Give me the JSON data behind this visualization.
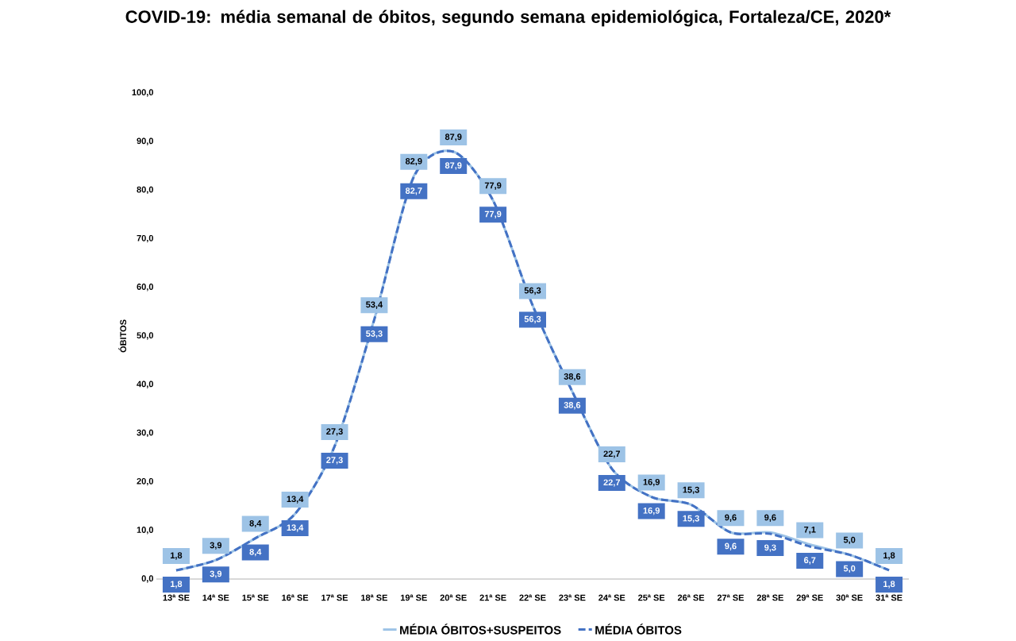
{
  "chart_data": {
    "type": "line",
    "title": "COVID-19: média semanal de óbitos, segundo semana epidemiológica, Fortaleza/CE, 2020*",
    "ylabel": "ÓBITOS",
    "categories": [
      "13ª SE",
      "14ª SE",
      "15ª SE",
      "16ª SE",
      "17ª SE",
      "18ª SE",
      "19ª SE",
      "20ª SE",
      "21ª SE",
      "22ª SE",
      "23ª SE",
      "24ª SE",
      "25ª SE",
      "26ª SE",
      "27ª SE",
      "28ª SE",
      "29ª SE",
      "30ª SE",
      "31ª SE"
    ],
    "series": [
      {
        "name": "MÉDIA ÓBITOS+SUSPEITOS",
        "color": "#9dc3e6",
        "line_style": "solid",
        "values": [
          1.8,
          3.9,
          8.4,
          13.4,
          27.3,
          53.4,
          82.9,
          87.9,
          77.9,
          56.3,
          38.6,
          22.7,
          16.9,
          15.3,
          9.6,
          9.6,
          7.1,
          5.0,
          1.8
        ],
        "value_labels": [
          "1,8",
          "3,9",
          "8,4",
          "13,4",
          "27,3",
          "53,4",
          "82,9",
          "87,9",
          "77,9",
          "56,3",
          "38,6",
          "22,7",
          "16,9",
          "15,3",
          "9,6",
          "9,6",
          "7,1",
          "5,0",
          "1,8"
        ]
      },
      {
        "name": "MÉDIA ÓBITOS",
        "color": "#4472c4",
        "line_style": "dashed",
        "values": [
          1.8,
          3.9,
          8.4,
          13.4,
          27.3,
          53.3,
          82.7,
          87.9,
          77.9,
          56.3,
          38.6,
          22.7,
          16.9,
          15.3,
          9.6,
          9.3,
          6.7,
          5.0,
          1.8
        ],
        "value_labels": [
          "1,8",
          "3,9",
          "8,4",
          "13,4",
          "27,3",
          "53,3",
          "82,7",
          "87,9",
          "77,9",
          "56,3",
          "38,6",
          "22,7",
          "16,9",
          "15,3",
          "9,6",
          "9,3",
          "6,7",
          "5,0",
          "1,8"
        ]
      }
    ],
    "ylim": [
      0,
      100
    ],
    "yticks": [
      {
        "value": 0,
        "label": "0,0"
      },
      {
        "value": 10,
        "label": "10,0"
      },
      {
        "value": 20,
        "label": "20,0"
      },
      {
        "value": 30,
        "label": "30,0"
      },
      {
        "value": 40,
        "label": "40,0"
      },
      {
        "value": 50,
        "label": "50,0"
      },
      {
        "value": 60,
        "label": "60,0"
      },
      {
        "value": 70,
        "label": "70,0"
      },
      {
        "value": 80,
        "label": "80,0"
      },
      {
        "value": 90,
        "label": "90,0"
      },
      {
        "value": 100,
        "label": "100,0"
      }
    ],
    "marker": "none",
    "legend": "bottom"
  }
}
